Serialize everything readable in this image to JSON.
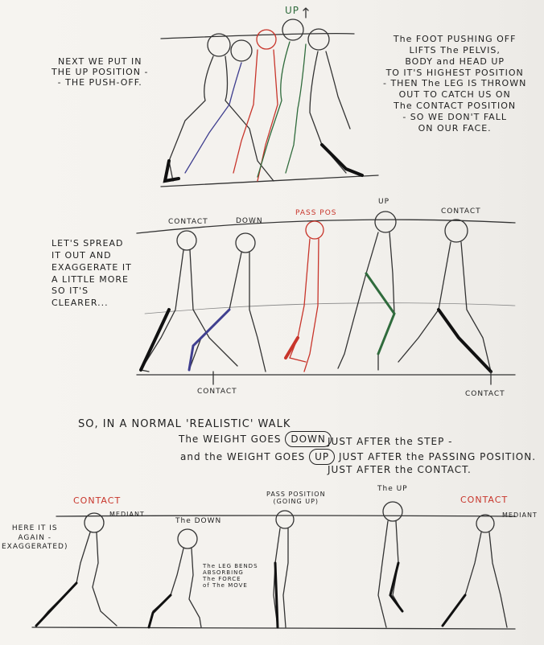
{
  "section1": {
    "label_up": "UP",
    "note_left": "NEXT WE PUT IN\nTHE UP POSITION -\n- THE PUSH-OFF.",
    "note_right": "The FOOT PUSHING OFF\nLIFTS The PELVIS,\nBODY and HEAD UP\nTO IT'S HIGHEST POSITION\n- THEN The LEG IS THROWN\nOUT TO CATCH US ON\nThe CONTACT POSITION\n- SO WE DON'T FALL\nON OUR FACE."
  },
  "section2": {
    "note_left": "LET'S SPREAD\nIT OUT AND\nEXAGGERATE IT\nA LITTLE MORE\nSO IT'S\nCLEARER...",
    "labels": [
      "CONTACT",
      "DOWN",
      "PASS POS",
      "UP",
      "CONTACT"
    ],
    "contact_bottom_left": "CONTACT",
    "contact_bottom_right": "CONTACT"
  },
  "section3": {
    "line1": "SO, IN A NORMAL 'REALISTIC' WALK",
    "line2_a": "The WEIGHT GOES",
    "line2_word": "DOWN",
    "line2_b": "JUST AFTER the STEP -",
    "line2_c": "JUST AFTER the CONTACT.",
    "line3_a": "and the WEIGHT GOES",
    "line3_word": "UP",
    "line3_b": "JUST AFTER the PASSING POSITION."
  },
  "section4": {
    "note_left": "HERE IT IS\nAGAIN -\nEXAGGERATED)",
    "contact_left": "CONTACT",
    "mediant_left": "MEDIANT",
    "the_down": "The DOWN",
    "leg_bends": "The LEG BENDS\nABSORBING\nThe FORCE\nof The MOVE",
    "pass_pos": "PASS POSITION\n(GOING UP)",
    "the_up": "The UP",
    "contact_right": "CONTACT",
    "mediant_right": "MEDIANT"
  },
  "colors": {
    "red": "#c8352b",
    "blue": "#3f3f8f",
    "green": "#2f6b3c",
    "ink": "#1f1f1f"
  }
}
